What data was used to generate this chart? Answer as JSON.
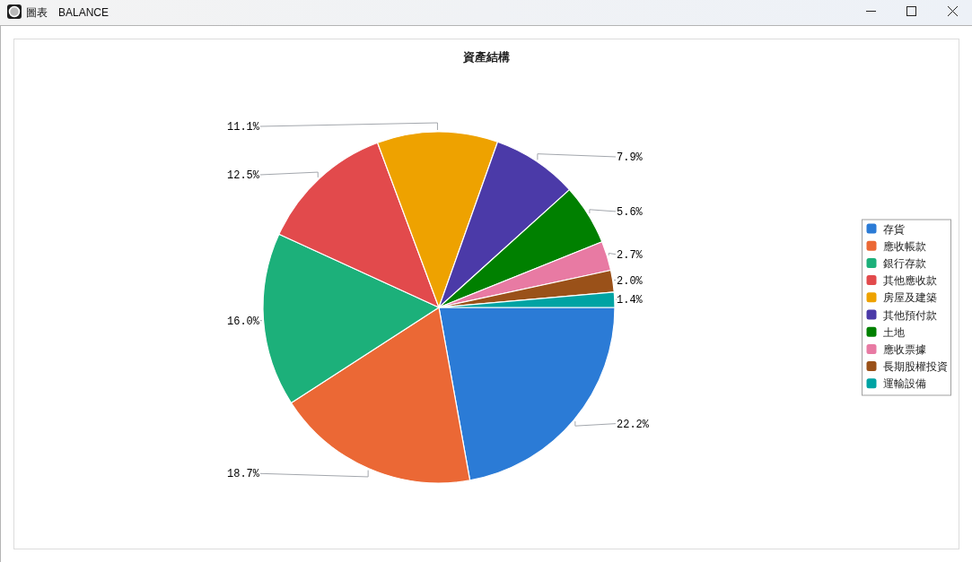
{
  "chart_data": {
    "type": "pie",
    "title": "資產結構",
    "annotations": [
      "圖表　BALANCE"
    ],
    "categories": [
      "存貨",
      "應收帳款",
      "銀行存款",
      "其他應收款",
      "房屋及建築",
      "其他預付款",
      "土地",
      "應收票據",
      "長期股權投資",
      "運輸設備"
    ],
    "values": [
      22.2,
      18.7,
      16.0,
      12.5,
      11.1,
      7.9,
      5.6,
      2.7,
      2.0,
      1.4
    ],
    "value_labels": [
      "22.2%",
      "18.7%",
      "16.0%",
      "12.5%",
      "11.1%",
      "7.9%",
      "5.6%",
      "2.7%",
      "2.0%",
      "1.4%"
    ],
    "colors": [
      "#2b7bd6",
      "#eb6835",
      "#1cb07a",
      "#e24a4c",
      "#eea200",
      "#4b3aa8",
      "#008000",
      "#e87aa3",
      "#9a5119",
      "#00a3a3"
    ],
    "legend": "right"
  }
}
